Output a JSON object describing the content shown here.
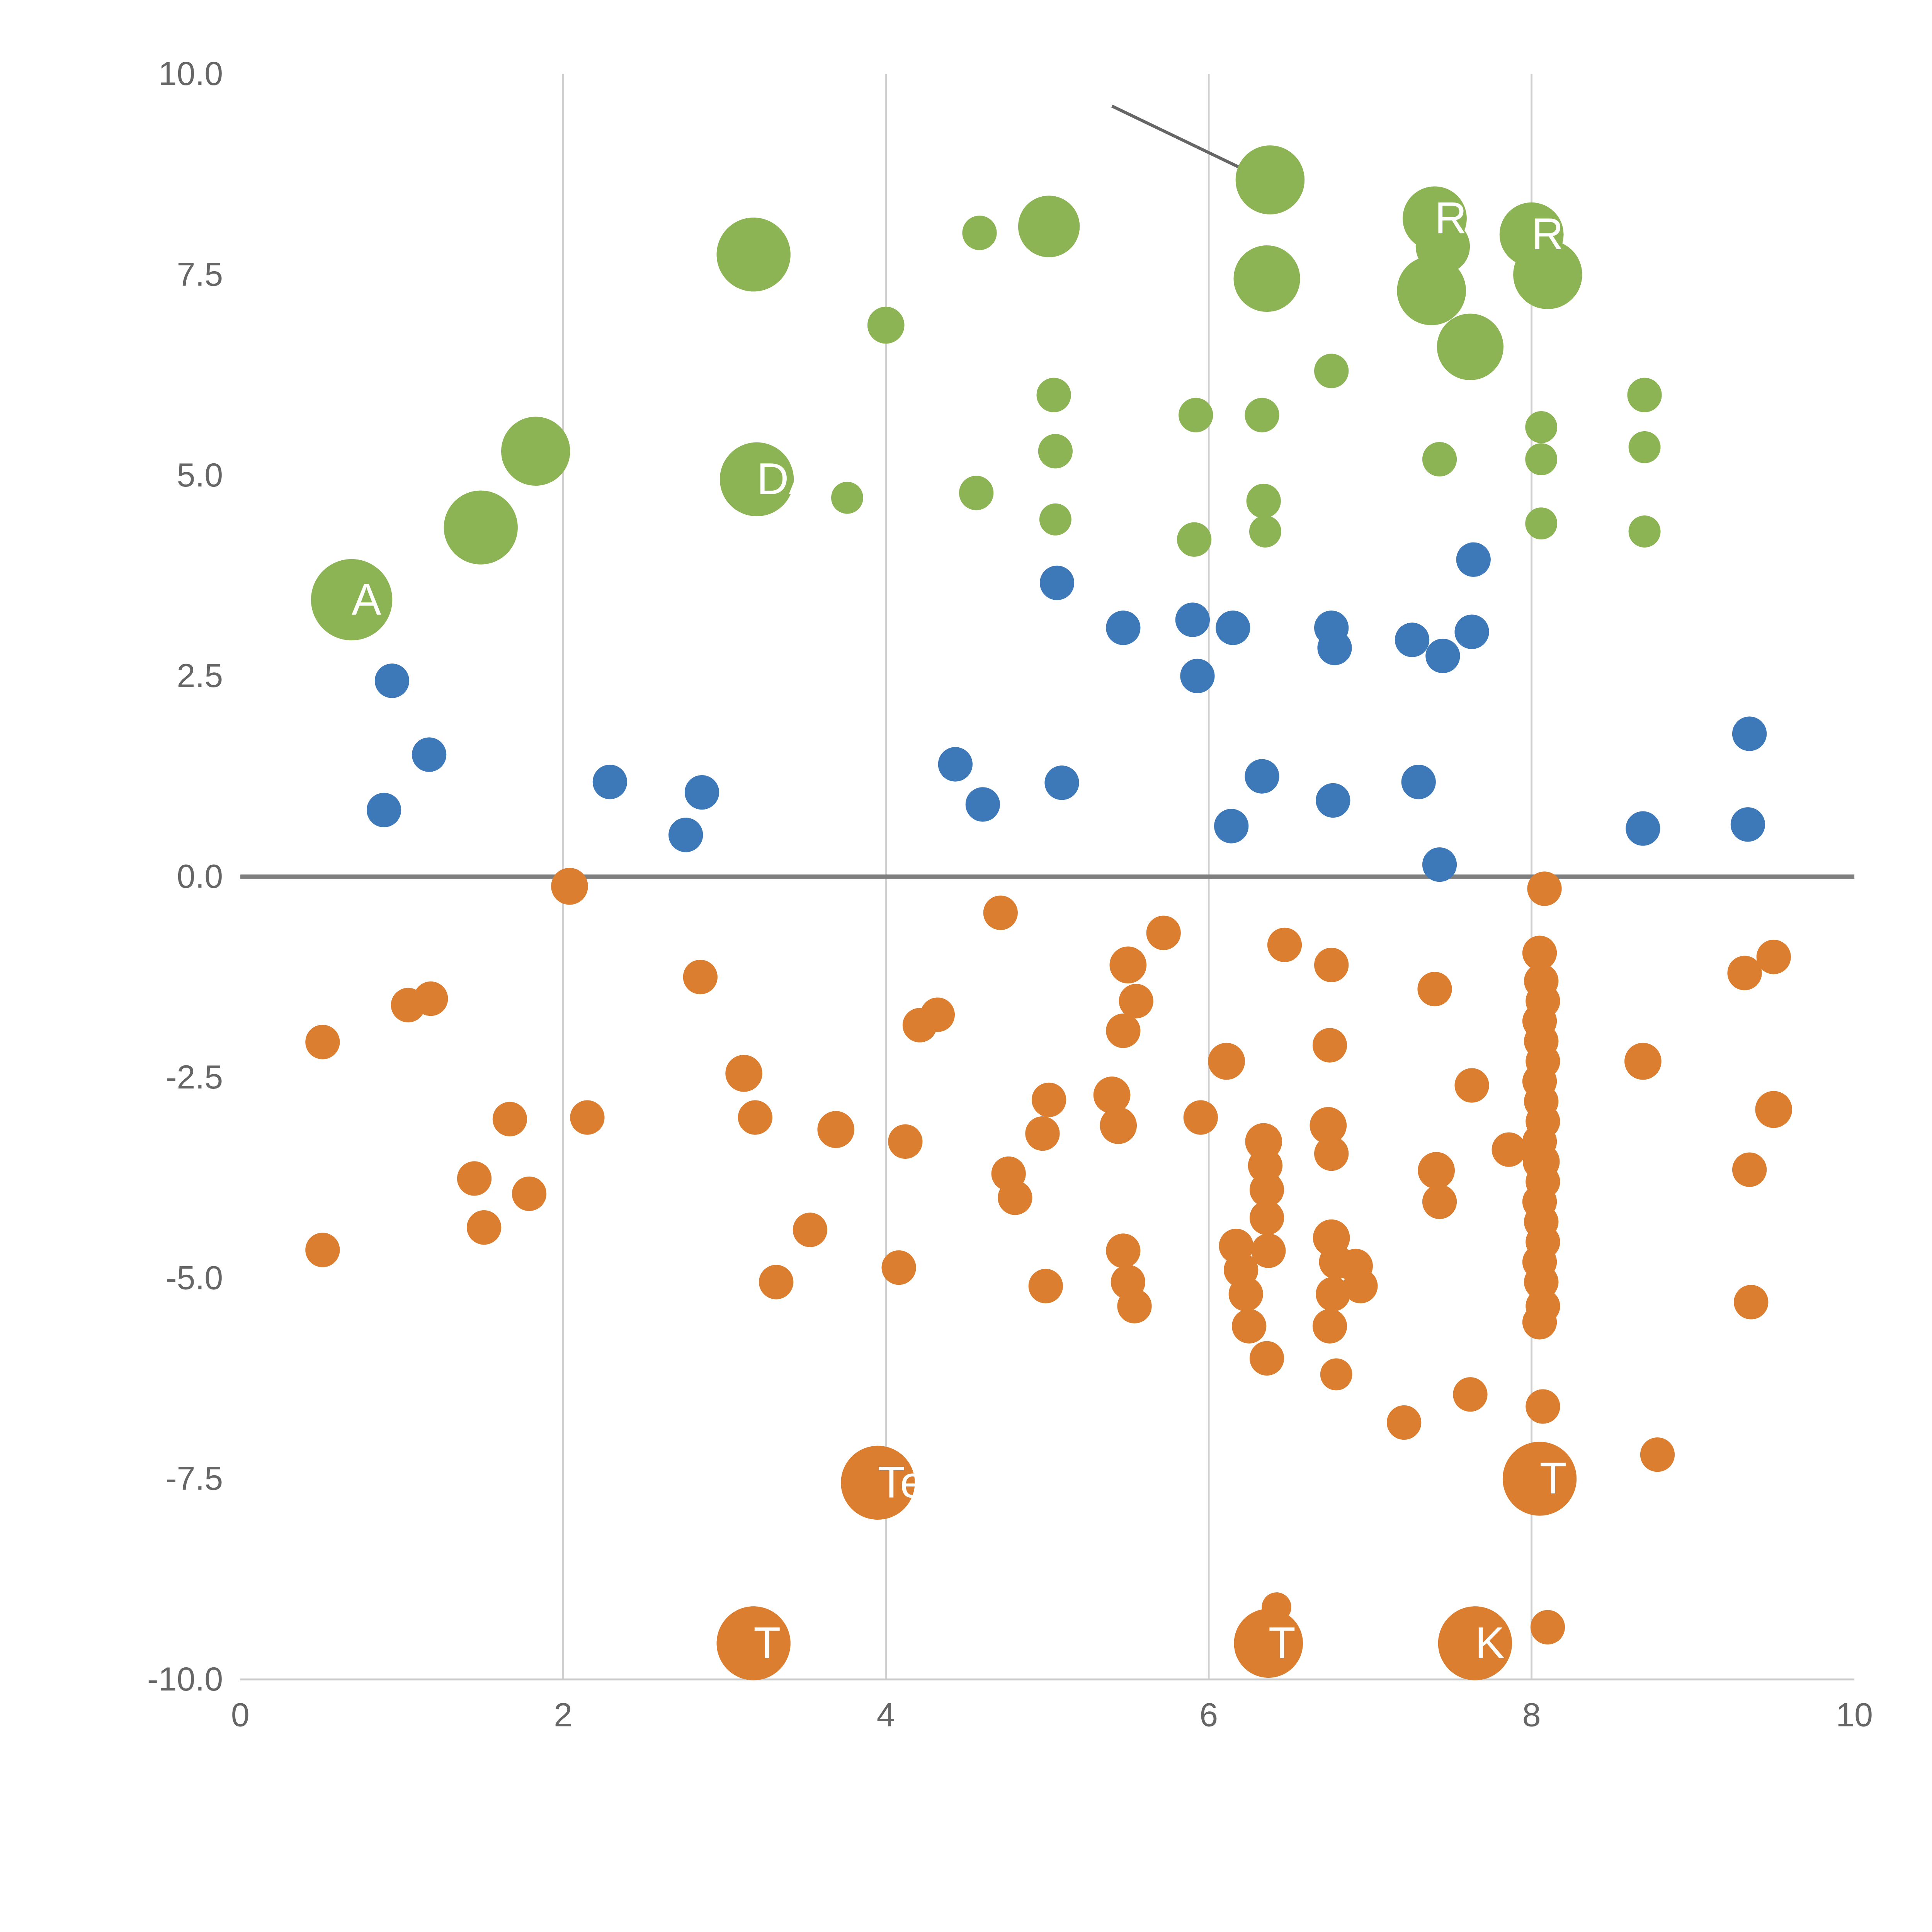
{
  "chart_data": {
    "type": "scatter",
    "title": "",
    "xlabel": "",
    "ylabel": "",
    "xlim": [
      0,
      10
    ],
    "ylim": [
      -10,
      10
    ],
    "x_tick_labels": [
      "0",
      "2",
      "4",
      "6",
      "8",
      "10"
    ],
    "x_tick_values": [
      0,
      2,
      4,
      6,
      8,
      10
    ],
    "y_tick_labels": [
      "10.0",
      "7.5",
      "5.0",
      "2.5",
      "0.0",
      "-2.5",
      "-5.0",
      "-7.5",
      "-10.0"
    ],
    "y_tick_values": [
      10,
      7.5,
      5,
      2.5,
      0,
      -2.5,
      -5,
      -7.5,
      -10
    ],
    "grid": "vertical-only",
    "vertical_gridlines_x": [
      2,
      4,
      6,
      8
    ],
    "zero_line_y": 0,
    "legend": "none",
    "annotation_line": {
      "x1": 5.4,
      "y1": 9.6,
      "x2": 6.31,
      "y2": 8.72
    },
    "colors": {
      "green": "#8CB454",
      "blue": "#3D79B8",
      "orange": "#DC7E2F",
      "gridline": "#D0D0D0",
      "axis_line": "#CCCCCC",
      "zero_line": "#7F7F7F",
      "annotation": "#666666",
      "tick_text": "#666666",
      "bubble_label": "#FFFFFF",
      "background": "#FFFFFF"
    },
    "series": [
      {
        "name": "green",
        "color_key": "green",
        "points": [
          [
            0.69,
            3.45,
            33,
            "A"
          ],
          [
            1.49,
            4.35,
            30
          ],
          [
            1.83,
            5.3,
            28
          ],
          [
            3.18,
            7.75,
            30
          ],
          [
            3.2,
            4.95,
            30,
            "DA"
          ],
          [
            3.76,
            4.72,
            13
          ],
          [
            4.0,
            6.87,
            15
          ],
          [
            4.58,
            8.02,
            14
          ],
          [
            4.56,
            4.78,
            14
          ],
          [
            5.01,
            8.1,
            25
          ],
          [
            5.04,
            6.0,
            14
          ],
          [
            5.05,
            5.3,
            14
          ],
          [
            5.05,
            4.45,
            13
          ],
          [
            5.92,
            5.75,
            14
          ],
          [
            5.91,
            4.2,
            14
          ],
          [
            6.33,
            5.75,
            14
          ],
          [
            6.34,
            4.68,
            14
          ],
          [
            6.35,
            4.3,
            13
          ],
          [
            6.38,
            8.68,
            28
          ],
          [
            6.36,
            7.45,
            27
          ],
          [
            6.76,
            6.3,
            14
          ],
          [
            7.4,
            8.2,
            26,
            "R"
          ],
          [
            7.45,
            7.85,
            22
          ],
          [
            7.38,
            7.3,
            28
          ],
          [
            7.62,
            6.6,
            27
          ],
          [
            7.43,
            5.2,
            14
          ],
          [
            8.0,
            8.0,
            26,
            "R"
          ],
          [
            8.1,
            7.5,
            28
          ],
          [
            8.06,
            5.6,
            13
          ],
          [
            8.06,
            5.2,
            13
          ],
          [
            8.06,
            4.4,
            13
          ],
          [
            8.7,
            6.0,
            14
          ],
          [
            8.7,
            5.35,
            13
          ],
          [
            8.7,
            4.3,
            13
          ]
        ]
      },
      {
        "name": "blue",
        "color_key": "blue",
        "points": [
          [
            0.94,
            2.44,
            14
          ],
          [
            1.17,
            1.52,
            14
          ],
          [
            0.89,
            0.83,
            14
          ],
          [
            2.29,
            1.18,
            14
          ],
          [
            2.86,
            1.05,
            14
          ],
          [
            2.76,
            0.52,
            14
          ],
          [
            4.43,
            1.4,
            14
          ],
          [
            4.6,
            0.9,
            14
          ],
          [
            5.09,
            1.17,
            14
          ],
          [
            5.06,
            3.66,
            14
          ],
          [
            5.47,
            3.1,
            14
          ],
          [
            5.9,
            3.2,
            14
          ],
          [
            5.93,
            2.5,
            14
          ],
          [
            6.15,
            3.1,
            14
          ],
          [
            6.14,
            0.63,
            14
          ],
          [
            6.33,
            1.25,
            14
          ],
          [
            6.77,
            0.95,
            14
          ],
          [
            6.76,
            3.1,
            14
          ],
          [
            6.78,
            2.85,
            14
          ],
          [
            7.26,
            2.95,
            14
          ],
          [
            7.3,
            1.18,
            14
          ],
          [
            7.45,
            2.75,
            14
          ],
          [
            7.43,
            0.15,
            14
          ],
          [
            7.63,
            3.05,
            14
          ],
          [
            7.64,
            3.95,
            14
          ],
          [
            8.69,
            0.6,
            14
          ],
          [
            9.35,
            1.78,
            14
          ],
          [
            9.34,
            0.65,
            14
          ]
        ]
      },
      {
        "name": "orange",
        "color_key": "orange",
        "points": [
          [
            0.51,
            -2.06,
            14
          ],
          [
            0.51,
            -4.65,
            14
          ],
          [
            1.04,
            -1.6,
            14
          ],
          [
            1.18,
            -1.52,
            14
          ],
          [
            1.45,
            -3.76,
            14
          ],
          [
            1.51,
            -4.37,
            14
          ],
          [
            1.67,
            -3.02,
            14
          ],
          [
            1.79,
            -3.95,
            14
          ],
          [
            2.04,
            -0.12,
            15
          ],
          [
            2.15,
            -3.0,
            14
          ],
          [
            2.85,
            -1.25,
            14
          ],
          [
            3.12,
            -2.45,
            15
          ],
          [
            3.19,
            -3.0,
            14
          ],
          [
            3.32,
            -5.05,
            14
          ],
          [
            3.18,
            -9.55,
            30,
            "T"
          ],
          [
            3.53,
            -4.4,
            14
          ],
          [
            3.69,
            -3.15,
            15
          ],
          [
            3.95,
            -7.55,
            30,
            "Te"
          ],
          [
            4.12,
            -3.3,
            14
          ],
          [
            4.08,
            -4.87,
            14
          ],
          [
            4.21,
            -1.85,
            14
          ],
          [
            4.32,
            -1.72,
            14
          ],
          [
            4.71,
            -0.45,
            14
          ],
          [
            4.76,
            -3.7,
            14
          ],
          [
            4.8,
            -4.0,
            14
          ],
          [
            4.97,
            -3.2,
            14
          ],
          [
            5.01,
            -2.78,
            14
          ],
          [
            4.99,
            -5.1,
            14
          ],
          [
            5.4,
            -2.72,
            15
          ],
          [
            5.44,
            -3.1,
            15
          ],
          [
            5.47,
            -1.92,
            14
          ],
          [
            5.5,
            -1.1,
            15
          ],
          [
            5.55,
            -1.55,
            14
          ],
          [
            5.47,
            -4.66,
            14
          ],
          [
            5.5,
            -5.05,
            14
          ],
          [
            5.54,
            -5.35,
            14
          ],
          [
            5.72,
            -0.7,
            14
          ],
          [
            5.95,
            -3.0,
            14
          ],
          [
            6.11,
            -2.3,
            15
          ],
          [
            6.17,
            -4.6,
            14
          ],
          [
            6.2,
            -4.9,
            14
          ],
          [
            6.23,
            -5.2,
            14
          ],
          [
            6.25,
            -5.6,
            14
          ],
          [
            6.34,
            -3.3,
            15
          ],
          [
            6.35,
            -3.6,
            14
          ],
          [
            6.36,
            -3.9,
            14
          ],
          [
            6.36,
            -4.25,
            14
          ],
          [
            6.37,
            -4.66,
            14
          ],
          [
            6.36,
            -6.0,
            14
          ],
          [
            6.47,
            -0.85,
            14
          ],
          [
            6.37,
            -9.55,
            28,
            "T"
          ],
          [
            6.42,
            -9.1,
            12
          ],
          [
            6.76,
            -1.1,
            14
          ],
          [
            6.75,
            -2.1,
            14
          ],
          [
            6.74,
            -3.1,
            15
          ],
          [
            6.76,
            -3.45,
            14
          ],
          [
            6.76,
            -4.5,
            15
          ],
          [
            6.79,
            -4.8,
            14
          ],
          [
            6.77,
            -5.2,
            14
          ],
          [
            6.75,
            -5.6,
            14
          ],
          [
            6.79,
            -6.2,
            13
          ],
          [
            6.91,
            -4.85,
            14
          ],
          [
            6.94,
            -5.1,
            14
          ],
          [
            7.21,
            -6.8,
            14
          ],
          [
            7.4,
            -1.4,
            14
          ],
          [
            7.41,
            -3.66,
            15
          ],
          [
            7.43,
            -4.05,
            14
          ],
          [
            7.63,
            -2.6,
            14
          ],
          [
            7.62,
            -6.45,
            14
          ],
          [
            7.65,
            -9.55,
            30,
            "K"
          ],
          [
            7.86,
            -3.4,
            14
          ],
          [
            8.08,
            -0.15,
            14
          ],
          [
            8.05,
            -0.95,
            14
          ],
          [
            8.06,
            -1.3,
            14
          ],
          [
            8.07,
            -1.55,
            14
          ],
          [
            8.05,
            -1.8,
            14
          ],
          [
            8.06,
            -2.05,
            14
          ],
          [
            8.07,
            -2.3,
            14
          ],
          [
            8.05,
            -2.55,
            14
          ],
          [
            8.06,
            -2.8,
            14
          ],
          [
            8.07,
            -3.05,
            14
          ],
          [
            8.05,
            -3.3,
            14
          ],
          [
            8.06,
            -3.55,
            15
          ],
          [
            8.07,
            -3.8,
            14
          ],
          [
            8.05,
            -4.05,
            14
          ],
          [
            8.06,
            -4.3,
            14
          ],
          [
            8.07,
            -4.55,
            14
          ],
          [
            8.05,
            -4.8,
            14
          ],
          [
            8.06,
            -5.05,
            14
          ],
          [
            8.07,
            -5.35,
            14
          ],
          [
            8.05,
            -5.55,
            14
          ],
          [
            8.07,
            -6.6,
            14
          ],
          [
            8.05,
            -7.5,
            30,
            "T"
          ],
          [
            8.1,
            -9.35,
            14
          ],
          [
            8.69,
            -2.3,
            15
          ],
          [
            8.78,
            -7.2,
            14
          ],
          [
            9.32,
            -1.2,
            14
          ],
          [
            9.5,
            -1.0,
            14
          ],
          [
            9.5,
            -2.9,
            15
          ],
          [
            9.35,
            -3.65,
            14
          ],
          [
            9.36,
            -5.3,
            14
          ]
        ]
      }
    ]
  }
}
